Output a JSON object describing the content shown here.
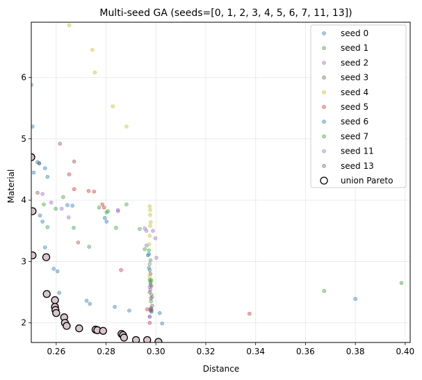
{
  "chart_data": {
    "type": "scatter",
    "title": "Multi-seed GA (seeds=[0, 1, 2, 3, 4, 5, 6, 7, 11, 13])",
    "xlabel": "Distance",
    "ylabel": "Material",
    "xlim": [
      0.25,
      0.402
    ],
    "ylim": [
      1.68,
      6.9
    ],
    "xticks": [
      0.26,
      0.28,
      0.3,
      0.32,
      0.34,
      0.36,
      0.38,
      0.4
    ],
    "xtick_labels": [
      "0.26",
      "0.28",
      "0.30",
      "0.32",
      "0.34",
      "0.36",
      "0.38",
      "0.40"
    ],
    "yticks": [
      2,
      3,
      4,
      5,
      6
    ],
    "ytick_labels": [
      "2",
      "3",
      "4",
      "5",
      "6"
    ],
    "grid": true,
    "legend_position": "top-right",
    "series": [
      {
        "name": "seed 0",
        "color": "#1f77b4",
        "points": [
          [
            0.25,
            5.88
          ],
          [
            0.2505,
            5.2
          ],
          [
            0.251,
            4.45
          ],
          [
            0.2525,
            4.62
          ],
          [
            0.2535,
            3.75
          ],
          [
            0.2545,
            3.65
          ],
          [
            0.2555,
            4.52
          ],
          [
            0.2565,
            4.38
          ],
          [
            0.2555,
            3.23
          ],
          [
            0.259,
            2.88
          ],
          [
            0.2605,
            2.84
          ],
          [
            0.2612,
            2.49
          ],
          [
            0.2645,
            3.92
          ],
          [
            0.2665,
            3.91
          ],
          [
            0.2722,
            2.36
          ],
          [
            0.2735,
            2.31
          ],
          [
            0.2795,
            3.71
          ],
          [
            0.2802,
            3.65
          ],
          [
            0.2835,
            2.26
          ],
          [
            0.2893,
            2.2
          ],
          [
            0.2968,
            3.1
          ],
          [
            0.3015,
            2.16
          ],
          [
            0.3025,
            1.99
          ],
          [
            0.38,
            2.39
          ]
        ]
      },
      {
        "name": "seed 1",
        "color": "#2ca02c",
        "points": [
          [
            0.255,
            3.93
          ],
          [
            0.2565,
            3.56
          ],
          [
            0.2628,
            4.05
          ],
          [
            0.267,
            3.55
          ],
          [
            0.2732,
            3.24
          ],
          [
            0.2772,
            3.88
          ],
          [
            0.2808,
            3.82
          ],
          [
            0.284,
            3.55
          ],
          [
            0.2935,
            3.53
          ],
          [
            0.2955,
            3.2
          ],
          [
            0.2972,
            2.9
          ],
          [
            0.2975,
            2.7
          ],
          [
            0.2978,
            2.62
          ],
          [
            0.298,
            2.35
          ],
          [
            0.2982,
            2.2
          ],
          [
            0.3675,
            2.52
          ],
          [
            0.3985,
            2.65
          ]
        ]
      },
      {
        "name": "seed 2",
        "color": "#9467bd",
        "points": [
          [
            0.2622,
            3.86
          ],
          [
            0.265,
            3.72
          ],
          [
            0.2848,
            3.82
          ],
          [
            0.2955,
            3.54
          ],
          [
            0.2962,
            3.5
          ],
          [
            0.2988,
            3.5
          ],
          [
            0.2998,
            3.38
          ],
          [
            0.3002,
            3.06
          ],
          [
            0.2962,
            3.26
          ],
          [
            0.2975,
            2.96
          ],
          [
            0.2978,
            2.54
          ],
          [
            0.2985,
            2.42
          ],
          [
            0.2975,
            2.1
          ]
        ]
      },
      {
        "name": "seed 3",
        "color": "#8c564b",
        "points": [
          [
            0.2532,
            4.6
          ],
          [
            0.2615,
            4.92
          ],
          [
            0.2672,
            4.63
          ],
          [
            0.2688,
            3.31
          ],
          [
            0.2978,
            2.8
          ],
          [
            0.2982,
            2.6
          ],
          [
            0.2985,
            2.28
          ],
          [
            0.2978,
            2.2
          ]
        ]
      },
      {
        "name": "seed 4",
        "color": "#bcbd22",
        "points": [
          [
            0.2652,
            6.85
          ],
          [
            0.2745,
            6.45
          ],
          [
            0.2755,
            6.08
          ],
          [
            0.2827,
            5.53
          ],
          [
            0.2882,
            5.2
          ],
          [
            0.2975,
            3.9
          ],
          [
            0.2977,
            3.84
          ],
          [
            0.2977,
            3.76
          ],
          [
            0.2979,
            3.64
          ],
          [
            0.2977,
            3.58
          ],
          [
            0.2975,
            3.42
          ],
          [
            0.2972,
            3.28
          ],
          [
            0.2975,
            2.76
          ],
          [
            0.2982,
            2.68
          ]
        ]
      },
      {
        "name": "seed 5",
        "color": "#d62728",
        "points": [
          [
            0.2652,
            4.42
          ],
          [
            0.2672,
            4.18
          ],
          [
            0.273,
            4.15
          ],
          [
            0.2752,
            4.14
          ],
          [
            0.2785,
            3.93
          ],
          [
            0.2792,
            3.88
          ],
          [
            0.286,
            2.86
          ],
          [
            0.3375,
            2.15
          ],
          [
            0.2965,
            2.22
          ],
          [
            0.2975,
            2.0
          ]
        ]
      },
      {
        "name": "seed 6",
        "color": "#1f77b4",
        "points": [
          [
            0.2532,
            4.6
          ],
          [
            0.2972,
            3.12
          ],
          [
            0.2975,
            2.86
          ],
          [
            0.2978,
            2.66
          ],
          [
            0.298,
            2.24
          ],
          [
            0.2982,
            2.18
          ]
        ]
      },
      {
        "name": "seed 7",
        "color": "#2ca02c",
        "points": [
          [
            0.2598,
            3.86
          ],
          [
            0.2802,
            3.8
          ],
          [
            0.2882,
            3.93
          ],
          [
            0.2972,
            3.18
          ],
          [
            0.2978,
            3.02
          ],
          [
            0.298,
            2.7
          ],
          [
            0.2982,
            2.46
          ]
        ]
      },
      {
        "name": "seed 11",
        "color": "#9467bd",
        "points": [
          [
            0.2545,
            4.1
          ],
          [
            0.258,
            3.96
          ],
          [
            0.2848,
            3.84
          ],
          [
            0.2975,
            2.58
          ],
          [
            0.2978,
            2.22
          ],
          [
            0.2975,
            2.1
          ]
        ]
      },
      {
        "name": "seed 13",
        "color": "#8c564b",
        "points": [
          [
            0.2525,
            4.12
          ],
          [
            0.2975,
            2.5
          ],
          [
            0.298,
            2.4
          ],
          [
            0.2982,
            2.22
          ]
        ]
      }
    ],
    "pareto": {
      "name": "union Pareto",
      "points": [
        [
          0.25,
          4.7
        ],
        [
          0.2505,
          3.82
        ],
        [
          0.2505,
          3.1
        ],
        [
          0.256,
          3.07
        ],
        [
          0.2562,
          2.47
        ],
        [
          0.2595,
          2.37
        ],
        [
          0.2595,
          2.26
        ],
        [
          0.2597,
          2.21
        ],
        [
          0.26,
          2.16
        ],
        [
          0.2632,
          2.09
        ],
        [
          0.2635,
          2.0
        ],
        [
          0.2642,
          1.95
        ],
        [
          0.2692,
          1.91
        ],
        [
          0.2758,
          1.89
        ],
        [
          0.2765,
          1.88
        ],
        [
          0.2788,
          1.87
        ],
        [
          0.2862,
          1.82
        ],
        [
          0.2868,
          1.8
        ],
        [
          0.2872,
          1.76
        ],
        [
          0.292,
          1.72
        ],
        [
          0.2965,
          1.72
        ],
        [
          0.301,
          1.69
        ]
      ]
    }
  }
}
